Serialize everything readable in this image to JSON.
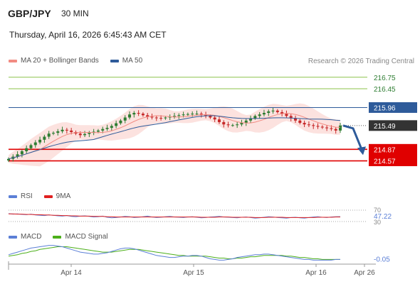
{
  "header": {
    "symbol": "GBP/JPY",
    "interval": "30 MIN",
    "datetime": "Thursday, April 16, 2026 6:45:43 AM CET",
    "credit": "Research © 2026 Trading Central"
  },
  "legends": {
    "main": [
      {
        "label": "MA 20 + Bollinger Bands",
        "color": "#f28b82"
      },
      {
        "label": "MA 50",
        "color": "#2e5b9a"
      }
    ],
    "rsi": [
      {
        "label": "RSI",
        "color": "#5b7fd6"
      },
      {
        "label": "9MA",
        "color": "#e02020"
      }
    ],
    "macd": [
      {
        "label": "MACD",
        "color": "#5b7fd6"
      },
      {
        "label": "MACD Signal",
        "color": "#4caf1a"
      }
    ]
  },
  "colors": {
    "up": "#2e7d32",
    "down": "#c62828",
    "resistance": "#8bc34a",
    "pivot": "#2e5b9a",
    "support": "#e00000",
    "current": "#333333",
    "arrow": "#2e5b9a"
  },
  "chart_data": [
    {
      "type": "candlestick",
      "x_ticks": [
        "Apr 14",
        "Apr 15",
        "Apr 16",
        "Apr 26"
      ],
      "ylim": [
        214.45,
        216.95
      ],
      "levels": [
        {
          "value": 216.75,
          "label": "216.75",
          "kind": "resistance"
        },
        {
          "value": 216.45,
          "label": "216.45",
          "kind": "resistance"
        },
        {
          "value": 215.96,
          "label": "215.96",
          "kind": "pivot"
        },
        {
          "value": 215.49,
          "label": "215.49",
          "kind": "current"
        },
        {
          "value": 214.87,
          "label": "214.87",
          "kind": "support"
        },
        {
          "value": 214.57,
          "label": "214.57",
          "kind": "support"
        }
      ],
      "close_series": [
        214.62,
        214.68,
        214.74,
        214.82,
        214.9,
        214.98,
        215.05,
        215.12,
        215.2,
        215.28,
        215.3,
        215.34,
        215.38,
        215.36,
        215.32,
        215.28,
        215.24,
        215.27,
        215.3,
        215.33,
        215.36,
        215.4,
        215.43,
        215.48,
        215.55,
        215.62,
        215.7,
        215.78,
        215.82,
        215.8,
        215.76,
        215.72,
        215.7,
        215.69,
        215.68,
        215.7,
        215.72,
        215.74,
        215.76,
        215.78,
        215.79,
        215.8,
        215.8,
        215.78,
        215.74,
        215.7,
        215.65,
        215.58,
        215.52,
        215.5,
        215.5,
        215.52,
        215.56,
        215.62,
        215.68,
        215.74,
        215.78,
        215.82,
        215.86,
        215.88,
        215.84,
        215.8,
        215.74,
        215.68,
        215.62,
        215.56,
        215.52,
        215.5,
        215.48,
        215.46,
        215.44,
        215.42,
        215.4,
        215.36,
        215.49
      ],
      "projection": {
        "from": 215.49,
        "to": 214.87
      }
    },
    {
      "type": "line",
      "name": "RSI",
      "ylim": [
        30,
        70
      ],
      "ticks": [
        "70",
        "30"
      ],
      "last_value_label": "47.22",
      "series": [
        {
          "name": "RSI",
          "values": [
            58,
            56,
            57,
            55,
            54,
            56,
            53,
            52,
            51,
            53,
            52,
            50,
            49,
            51,
            48,
            47,
            49,
            50,
            48,
            46,
            47,
            49,
            45,
            43,
            44,
            46,
            48,
            47,
            44,
            45,
            47,
            49,
            46,
            44,
            45,
            47,
            48,
            46,
            45,
            44,
            46,
            47,
            45,
            43,
            44,
            46,
            47,
            48,
            46,
            45,
            44,
            43,
            45,
            46,
            44,
            42,
            43,
            45,
            47,
            46,
            44,
            43,
            42,
            44,
            45,
            43,
            42,
            44,
            46,
            47,
            45,
            44,
            46,
            47,
            47.22
          ]
        },
        {
          "name": "9MA",
          "values": [
            57,
            57,
            56,
            56,
            55,
            55,
            54,
            54,
            53,
            53,
            52,
            52,
            51,
            51,
            50,
            50,
            49,
            49,
            49,
            48,
            48,
            48,
            47,
            47,
            46,
            46,
            46,
            46,
            46,
            46,
            46,
            46,
            46,
            46,
            46,
            46,
            46,
            46,
            46,
            46,
            46,
            46,
            46,
            45,
            45,
            45,
            45,
            46,
            46,
            46,
            45,
            45,
            45,
            45,
            45,
            44,
            44,
            44,
            45,
            45,
            45,
            45,
            44,
            44,
            44,
            44,
            44,
            44,
            44,
            45,
            45,
            45,
            45,
            46,
            46
          ]
        }
      ]
    },
    {
      "type": "line",
      "name": "MACD",
      "ylim": [
        -0.12,
        0.22
      ],
      "last_value_label": "-0.05",
      "series": [
        {
          "name": "MACD",
          "values": [
            0.02,
            0.04,
            0.06,
            0.08,
            0.1,
            0.12,
            0.13,
            0.14,
            0.15,
            0.16,
            0.16,
            0.15,
            0.14,
            0.12,
            0.1,
            0.08,
            0.06,
            0.05,
            0.04,
            0.03,
            0.03,
            0.04,
            0.05,
            0.07,
            0.09,
            0.11,
            0.12,
            0.12,
            0.11,
            0.09,
            0.07,
            0.05,
            0.03,
            0.01,
            0.0,
            -0.01,
            -0.02,
            -0.02,
            -0.01,
            0.0,
            0.0,
            0.01,
            0.01,
            0.0,
            -0.02,
            -0.04,
            -0.05,
            -0.06,
            -0.06,
            -0.05,
            -0.04,
            -0.02,
            -0.01,
            0.0,
            0.01,
            0.02,
            0.02,
            0.03,
            0.03,
            0.02,
            0.01,
            0.0,
            -0.01,
            -0.02,
            -0.03,
            -0.04,
            -0.05,
            -0.05,
            -0.06,
            -0.06,
            -0.06,
            -0.06,
            -0.06,
            -0.05,
            -0.05
          ]
        },
        {
          "name": "MACD Signal",
          "values": [
            0.0,
            0.01,
            0.02,
            0.04,
            0.05,
            0.07,
            0.08,
            0.1,
            0.11,
            0.12,
            0.13,
            0.14,
            0.14,
            0.14,
            0.13,
            0.12,
            0.11,
            0.1,
            0.09,
            0.08,
            0.07,
            0.06,
            0.06,
            0.06,
            0.07,
            0.08,
            0.09,
            0.1,
            0.1,
            0.1,
            0.09,
            0.08,
            0.07,
            0.06,
            0.05,
            0.04,
            0.03,
            0.02,
            0.01,
            0.01,
            0.0,
            0.0,
            0.0,
            0.0,
            0.0,
            -0.01,
            -0.02,
            -0.03,
            -0.03,
            -0.04,
            -0.04,
            -0.03,
            -0.03,
            -0.02,
            -0.01,
            -0.01,
            0.0,
            0.01,
            0.01,
            0.01,
            0.01,
            0.01,
            0.0,
            0.0,
            -0.01,
            -0.02,
            -0.02,
            -0.03,
            -0.04,
            -0.04,
            -0.05,
            -0.05,
            -0.05,
            -0.05,
            -0.05
          ]
        }
      ]
    }
  ]
}
